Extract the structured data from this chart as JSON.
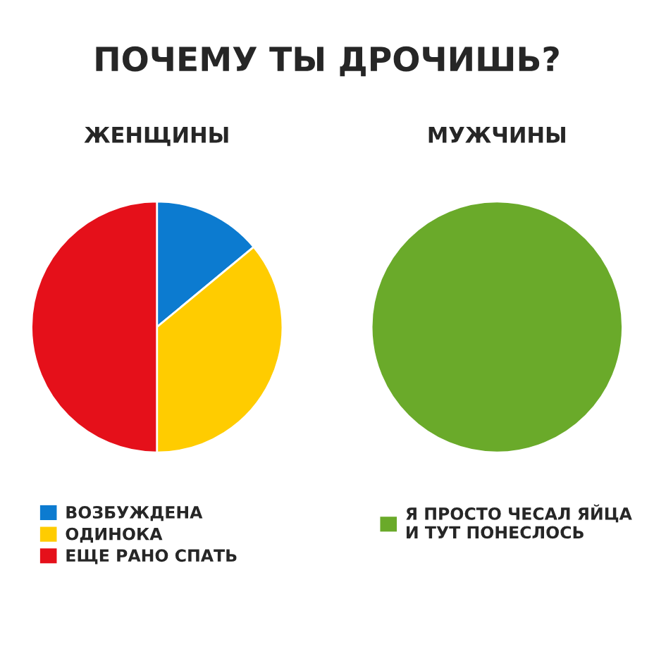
{
  "chart_data": [
    {
      "type": "pie",
      "title": "ПОЧЕМУ ТЫ ДРОЧИШЬ?",
      "subtitle": "ЖЕНЩИНЫ",
      "categories": [
        "ВОЗБУЖДЕНА",
        "ОДИНОКА",
        "ЕЩЕ РАНО СПАТЬ"
      ],
      "values": [
        14,
        36,
        50
      ],
      "colors": [
        "#0c7bd0",
        "#ffcc00",
        "#e5101a"
      ],
      "legend": "bottom"
    },
    {
      "type": "pie",
      "subtitle": "МУЖЧИНЫ",
      "categories": [
        "Я ПРОСТО ЧЕСАЛ ЯЙЦА\nИ ТУТ ПОНЕСЛОСЬ"
      ],
      "values": [
        100
      ],
      "colors": [
        "#6aaa2a"
      ],
      "legend": "bottom"
    }
  ]
}
